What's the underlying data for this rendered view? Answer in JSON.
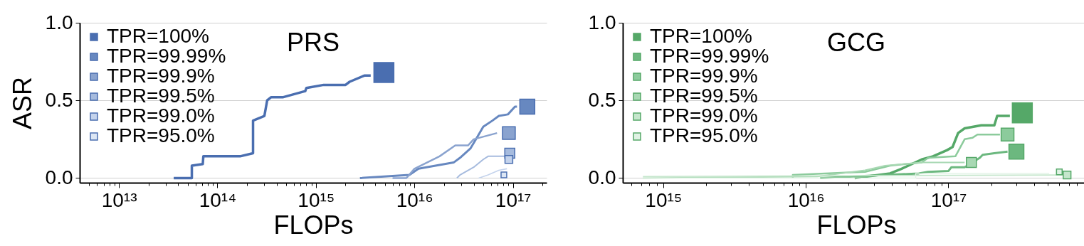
{
  "chart_data": [
    {
      "type": "line",
      "title": "PRS",
      "xlabel": "FLOPs",
      "ylabel": "ASR",
      "log": "x",
      "grid": "y",
      "legend": "top left",
      "xlim": [
        4000000000000.0,
        2.2e+17
      ],
      "ylim": [
        -0.03,
        1.0
      ],
      "xticks": [
        {
          "value": 5000000000000.0,
          "label": null
        },
        {
          "value": 6000000000000.0,
          "label": null
        },
        {
          "value": 7000000000000.0,
          "label": null
        },
        {
          "value": 8000000000000.0,
          "label": null
        },
        {
          "value": 9000000000000.0,
          "label": null
        },
        {
          "value": 10000000000000.0,
          "label": "10¹³"
        },
        {
          "value": 20000000000000.0,
          "label": null
        },
        {
          "value": 30000000000000.0,
          "label": null
        },
        {
          "value": 40000000000000.0,
          "label": null
        },
        {
          "value": 50000000000000.0,
          "label": null
        },
        {
          "value": 60000000000000.0,
          "label": null
        },
        {
          "value": 70000000000000.0,
          "label": null
        },
        {
          "value": 80000000000000.0,
          "label": null
        },
        {
          "value": 90000000000000.0,
          "label": null
        },
        {
          "value": 100000000000000.0,
          "label": "10¹⁴"
        },
        {
          "value": 200000000000000.0,
          "label": null
        },
        {
          "value": 300000000000000.0,
          "label": null
        },
        {
          "value": 400000000000000.0,
          "label": null
        },
        {
          "value": 500000000000000.0,
          "label": null
        },
        {
          "value": 600000000000000.0,
          "label": null
        },
        {
          "value": 700000000000000.0,
          "label": null
        },
        {
          "value": 800000000000000.0,
          "label": null
        },
        {
          "value": 900000000000000.0,
          "label": null
        },
        {
          "value": 1000000000000000.0,
          "label": "10¹⁵"
        },
        {
          "value": 2000000000000000.0,
          "label": null
        },
        {
          "value": 3000000000000000.0,
          "label": null
        },
        {
          "value": 4000000000000000.0,
          "label": null
        },
        {
          "value": 5000000000000000.0,
          "label": null
        },
        {
          "value": 6000000000000000.0,
          "label": null
        },
        {
          "value": 7000000000000000.0,
          "label": null
        },
        {
          "value": 8000000000000000.0,
          "label": null
        },
        {
          "value": 9000000000000000.0,
          "label": null
        },
        {
          "value": 1e+16,
          "label": "10¹⁶"
        },
        {
          "value": 2e+16,
          "label": null
        },
        {
          "value": 3e+16,
          "label": null
        },
        {
          "value": 4e+16,
          "label": null
        },
        {
          "value": 5e+16,
          "label": null
        },
        {
          "value": 6e+16,
          "label": null
        },
        {
          "value": 7e+16,
          "label": null
        },
        {
          "value": 8e+16,
          "label": null
        },
        {
          "value": 9e+16,
          "label": null
        },
        {
          "value": 1e+17,
          "label": "10¹⁷"
        },
        {
          "value": 2e+17,
          "label": null
        }
      ],
      "yticks": [
        {
          "value": 0,
          "label": "0.0"
        },
        {
          "value": 0.5,
          "label": "0.5"
        },
        {
          "value": 1,
          "label": "1.0"
        }
      ],
      "series": [
        {
          "type": "line",
          "color": "#4a6eb0",
          "x": [
            36000000000000.0,
            55000000000000.0,
            55000000000000.0,
            71000000000000.0,
            72000000000000.0,
            170000000000000.0,
            230000000000000.0,
            230000000000000.0,
            300000000000000.0,
            320000000000000.0,
            350000000000000.0,
            460000000000000.0,
            780000000000000.0,
            800000000000000.0,
            1200000000000000.0,
            2000000000000000.0,
            2200000000000000.0,
            3100000000000000.0,
            3600000000000000.0
          ],
          "values": [
            0,
            0,
            0.08,
            0.09,
            0.14,
            0.14,
            0.16,
            0.37,
            0.4,
            0.5,
            0.52,
            0.52,
            0.56,
            0.58,
            0.6,
            0.6,
            0.62,
            0.66,
            0.66
          ]
        },
        {
          "type": "line",
          "color": "#6788c0",
          "x": [
            2800000000000000.0,
            8900000000000000.0,
            1.1e+16,
            2.5e+16,
            2.9e+16,
            3.7e+16,
            4.4e+16,
            5e+16,
            6.2e+16,
            7.2e+16,
            8.9e+16,
            1.05e+17,
            1.1e+17
          ],
          "values": [
            0,
            0.02,
            0.06,
            0.1,
            0.13,
            0.19,
            0.27,
            0.33,
            0.37,
            0.4,
            0.41,
            0.46,
            0.46
          ]
        },
        {
          "type": "line",
          "color": "#8aa3cf",
          "x": [
            6000000000000000.0,
            8300000000000000.0,
            1e+16,
            1.8e+16,
            2.6e+16,
            3.5e+16,
            4e+16,
            6.9e+16
          ],
          "values": [
            0,
            0,
            0.06,
            0.14,
            0.21,
            0.21,
            0.25,
            0.29
          ]
        },
        {
          "type": "line",
          "color": "#a6bbde",
          "x": [
            2.7e+16,
            2.9e+16,
            4e+16,
            5e+16,
            5.6e+16,
            8.7e+16
          ],
          "values": [
            0,
            0.02,
            0.07,
            0.12,
            0.14,
            0.14
          ]
        },
        {
          "type": "line",
          "color": "#c4d3ec",
          "x": [
            4.5e+16,
            5.6e+16,
            7.2e+16,
            8.7e+16
          ],
          "values": [
            0,
            0.02,
            0.05,
            0.06
          ]
        },
        {
          "type": "bubble",
          "name": "TPR=100%",
          "color": "#4a6eb0",
          "x": [
            4900000000000000.0
          ],
          "values": [
            0.68
          ],
          "sizes": [
            1
          ]
        },
        {
          "type": "bubble",
          "name": "TPR=99.99%",
          "color": "#6788c0",
          "x": [
            1.4e+17
          ],
          "values": [
            0.46
          ],
          "sizes": [
            0.56
          ]
        },
        {
          "type": "bubble",
          "name": "TPR=99.9%",
          "color": "#8aa3cf",
          "x": [
            9.1e+16
          ],
          "values": [
            0.29
          ],
          "sizes": [
            0.41
          ]
        },
        {
          "type": "bubble",
          "name": "TPR=99.5%",
          "color": "#a6bbde",
          "x": [
            9.3e+16
          ],
          "values": [
            0.16
          ],
          "sizes": [
            0.25
          ]
        },
        {
          "type": "bubble",
          "name": "TPR=99.0%",
          "color": "#c4d3ec",
          "x": [
            9.1e+16
          ],
          "values": [
            0.12
          ],
          "sizes": [
            0.15
          ]
        },
        {
          "type": "bubble",
          "name": "TPR=95.0%",
          "color": "#dce6f4",
          "x": [
            8.1e+16
          ],
          "values": [
            0.02
          ],
          "sizes": [
            0.08
          ]
        }
      ]
    },
    {
      "type": "line",
      "title": "GCG",
      "xlabel": "FLOPs",
      "log": "x",
      "grid": "y",
      "legend": "top left",
      "xlim": [
        520000000000000.0,
        9.8e+17
      ],
      "ylim": [
        -0.03,
        1.0
      ],
      "xticks": [
        {
          "value": 600000000000000.0,
          "label": null
        },
        {
          "value": 700000000000000.0,
          "label": null
        },
        {
          "value": 800000000000000.0,
          "label": null
        },
        {
          "value": 900000000000000.0,
          "label": null
        },
        {
          "value": 1000000000000000.0,
          "label": "10¹⁵"
        },
        {
          "value": 2000000000000000.0,
          "label": null
        },
        {
          "value": 3000000000000000.0,
          "label": null
        },
        {
          "value": 4000000000000000.0,
          "label": null
        },
        {
          "value": 5000000000000000.0,
          "label": null
        },
        {
          "value": 6000000000000000.0,
          "label": null
        },
        {
          "value": 7000000000000000.0,
          "label": null
        },
        {
          "value": 8000000000000000.0,
          "label": null
        },
        {
          "value": 9000000000000000.0,
          "label": null
        },
        {
          "value": 1e+16,
          "label": "10¹⁶"
        },
        {
          "value": 2e+16,
          "label": null
        },
        {
          "value": 3e+16,
          "label": null
        },
        {
          "value": 4e+16,
          "label": null
        },
        {
          "value": 5e+16,
          "label": null
        },
        {
          "value": 6e+16,
          "label": null
        },
        {
          "value": 7e+16,
          "label": null
        },
        {
          "value": 8e+16,
          "label": null
        },
        {
          "value": 9e+16,
          "label": null
        },
        {
          "value": 1e+17,
          "label": "10¹⁷"
        },
        {
          "value": 2e+17,
          "label": null
        },
        {
          "value": 3e+17,
          "label": null
        },
        {
          "value": 4e+17,
          "label": null
        },
        {
          "value": 5e+17,
          "label": null
        },
        {
          "value": 6e+17,
          "label": null
        },
        {
          "value": 7e+17,
          "label": null
        },
        {
          "value": 8e+17,
          "label": null
        },
        {
          "value": 9e+17,
          "label": null
        }
      ],
      "yticks": [
        {
          "value": 0,
          "label": "0.0"
        },
        {
          "value": 0.5,
          "label": "0.5"
        },
        {
          "value": 1,
          "label": "1.0"
        }
      ],
      "series": [
        {
          "type": "line",
          "color": "#55a868",
          "x": [
            2.2e+16,
            3.9e+16,
            4.7e+16,
            6.5e+16,
            7.8e+16,
            9.8e+16,
            1.07e+17,
            1.17e+17,
            1.3e+17,
            1.7e+17,
            2.1e+17,
            2.2e+17,
            2.7e+17
          ],
          "values": [
            0,
            0.03,
            0.06,
            0.12,
            0.14,
            0.18,
            0.2,
            0.29,
            0.32,
            0.34,
            0.34,
            0.4,
            0.4
          ]
        },
        {
          "type": "line",
          "color": "#6cb87f",
          "x": [
            1.26e+16,
            6.2e+16,
            7.2e+16,
            1e+17,
            1.05e+17,
            1.3e+17,
            1.66e+17,
            1.74e+17,
            2.1e+17,
            2.6e+17
          ],
          "values": [
            0,
            0.03,
            0.04,
            0.045,
            0.07,
            0.07,
            0.13,
            0.15,
            0.16,
            0.17
          ]
        },
        {
          "type": "line",
          "color": "#8ccb9c",
          "x": [
            8100000000000000.0,
            8100000000000000.0,
            1.9e+16,
            2.6e+16,
            3.9e+16,
            6.5e+16,
            7.2e+16,
            1.12e+17,
            1.3e+17,
            1.48e+17,
            1.6e+17,
            2.3e+17
          ],
          "values": [
            0,
            0.02,
            0.035,
            0.04,
            0.08,
            0.1,
            0.13,
            0.14,
            0.25,
            0.26,
            0.28,
            0.28
          ]
        },
        {
          "type": "line",
          "color": "#a8d8b3",
          "x": [
            720000000000000.0,
            1.2e+16,
            2.6e+16,
            3.6e+16,
            6.6e+16,
            1.3e+17
          ],
          "values": [
            0,
            0.01,
            0.05,
            0.08,
            0.1,
            0.1
          ]
        },
        {
          "type": "line",
          "color": "#c5e6cc",
          "x": [
            720000000000000.0,
            6.3e+17
          ],
          "values": [
            0.01,
            0.02
          ]
        },
        {
          "type": "line",
          "color": "#e0f2e4",
          "x": [
            720000000000000.0,
            5.9e+16,
            5.9e+16,
            5.1e+17
          ],
          "values": [
            0,
            0,
            0.03,
            0.03
          ]
        },
        {
          "type": "bubble",
          "name": "TPR=100%",
          "color": "#55a868",
          "x": [
            3.3e+17
          ],
          "values": [
            0.42
          ],
          "sizes": [
            1
          ]
        },
        {
          "type": "bubble",
          "name": "TPR=99.99%",
          "color": "#6cb87f",
          "x": [
            3e+17
          ],
          "values": [
            0.17
          ],
          "sizes": [
            0.56
          ]
        },
        {
          "type": "bubble",
          "name": "TPR=99.9%",
          "color": "#8ccb9c",
          "x": [
            2.6e+17
          ],
          "values": [
            0.28
          ],
          "sizes": [
            0.41
          ]
        },
        {
          "type": "bubble",
          "name": "TPR=99.5%",
          "color": "#a8d8b3",
          "x": [
            1.45e+17
          ],
          "values": [
            0.1
          ],
          "sizes": [
            0.25
          ]
        },
        {
          "type": "bubble",
          "name": "TPR=99.0%",
          "color": "#c5e6cc",
          "x": [
            6.8e+17
          ],
          "values": [
            0.02
          ],
          "sizes": [
            0.15
          ]
        },
        {
          "type": "bubble",
          "name": "TPR=95.0%",
          "color": "#e0f2e4",
          "x": [
            6e+17
          ],
          "values": [
            0.04
          ],
          "sizes": [
            0.08
          ]
        }
      ]
    }
  ]
}
